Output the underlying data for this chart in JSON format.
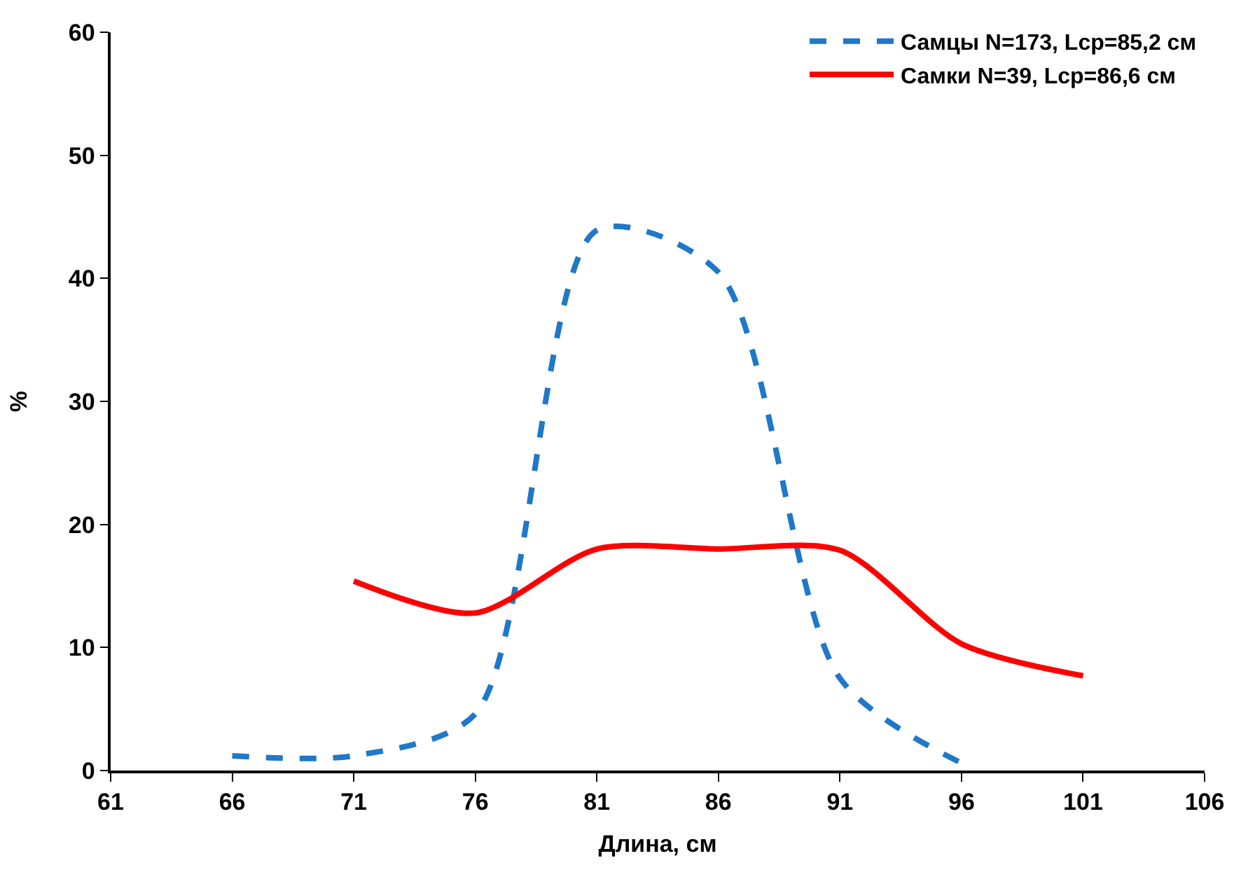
{
  "chart_data": {
    "type": "line",
    "xlabel": "Длина, см",
    "ylabel": "%",
    "x": [
      66,
      71,
      76,
      81,
      86,
      91,
      96,
      101
    ],
    "series": [
      {
        "name": "Самцы N=173, Lср=85,2 см",
        "color": "#1f78c8",
        "line_style": "dashed",
        "values": [
          1.2,
          1.2,
          4.6,
          43.9,
          40.5,
          7.5,
          0.6,
          null
        ]
      },
      {
        "name": "Самки N=39, Lср=86,6 см",
        "color": "#ff0000",
        "line_style": "solid",
        "values": [
          null,
          15.4,
          12.8,
          18.0,
          18.0,
          17.9,
          10.3,
          7.7
        ]
      }
    ],
    "xlim": [
      61,
      106
    ],
    "xticks": [
      61,
      66,
      71,
      76,
      81,
      86,
      91,
      96,
      101,
      106
    ],
    "ylim": [
      0,
      60
    ],
    "yticks": [
      0,
      10,
      20,
      30,
      40,
      50,
      60
    ],
    "grid": false,
    "legend": "top right",
    "marker": "none"
  }
}
